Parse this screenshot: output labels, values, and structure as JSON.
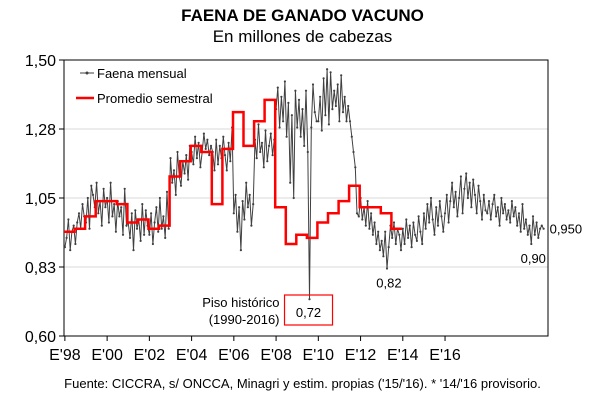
{
  "chart_data": {
    "type": "line",
    "title": "FAENA DE GANADO VACUNO",
    "subtitle": "En millones de cabezas",
    "source": "Fuente: CICCRA, s/ ONCCA, Minagri y estim. propias ('15/'16). * '14/'16 provisorio.",
    "xlabel": "",
    "ylabel": "",
    "ylim": [
      0.6,
      1.5
    ],
    "y_ticks": [
      "0,60",
      "0,83",
      "1,05",
      "1,28",
      "1,50"
    ],
    "x_ticks": [
      "E'98",
      "E'00",
      "E'02",
      "E'04",
      "E'06",
      "E'08",
      "E'10",
      "E'12",
      "E'14",
      "E'16"
    ],
    "legend": {
      "position": "top-left",
      "entries": [
        "Faena mensual",
        "Promedio semestral"
      ]
    },
    "colors": {
      "monthly": "#404040",
      "semester": "#ff0000",
      "annotation_box": "#ff0000"
    },
    "annotations": {
      "low_2008_value": "0,72",
      "low_2008_label": "Piso histórico",
      "low_2008_range": "(1990-2016)",
      "low_2011": "0,82",
      "low_2016": "0,90",
      "last_value": "0,950"
    },
    "series": [
      {
        "name": "Faena mensual",
        "values": [
          0.89,
          0.92,
          0.98,
          0.88,
          0.94,
          0.96,
          0.9,
          0.97,
          1.0,
          0.95,
          1.03,
          0.99,
          0.97,
          1.05,
          0.95,
          1.09,
          1.06,
          1.02,
          1.1,
          1.0,
          1.04,
          0.96,
          1.08,
          1.02,
          1.05,
          0.97,
          1.1,
          0.99,
          1.03,
          0.94,
          1.04,
          0.99,
          1.02,
          0.93,
          1.08,
          0.96,
          0.97,
          0.92,
          1.0,
          0.88,
          1.01,
          0.95,
          0.98,
          0.91,
          1.03,
          0.93,
          1.01,
          0.96,
          0.93,
          1.0,
          0.9,
          0.97,
          1.02,
          0.94,
          1.05,
          0.95,
          0.99,
          0.92,
          1.07,
          0.95,
          1.18,
          1.1,
          1.14,
          1.06,
          1.2,
          1.12,
          1.09,
          1.17,
          1.13,
          1.19,
          1.11,
          1.22,
          1.2,
          1.16,
          1.25,
          1.18,
          1.23,
          1.15,
          1.2,
          1.26,
          1.21,
          1.24,
          1.19,
          1.22,
          1.2,
          1.14,
          1.24,
          1.16,
          1.22,
          1.18,
          1.25,
          1.19,
          1.14,
          1.23,
          1.17,
          1.28,
          1.0,
          1.06,
          0.94,
          1.02,
          0.88,
          1.04,
          0.98,
          1.1,
          1.02,
          1.06,
          0.96,
          1.03,
          1.24,
          1.18,
          1.29,
          1.2,
          1.23,
          1.15,
          1.27,
          1.17,
          1.22,
          1.26,
          1.19,
          1.24,
          1.34,
          1.41,
          1.28,
          1.38,
          1.3,
          1.43,
          1.25,
          1.36,
          1.1,
          1.32,
          1.05,
          1.4,
          1.28,
          1.37,
          1.25,
          1.34,
          1.22,
          1.4,
          1.2,
          0.72,
          1.28,
          1.42,
          1.33,
          1.3,
          1.3,
          1.38,
          1.27,
          1.44,
          1.32,
          1.47,
          1.29,
          1.46,
          1.34,
          1.4,
          1.35,
          1.42,
          1.3,
          1.45,
          1.33,
          1.38,
          1.3,
          1.35,
          1.3,
          1.25,
          1.2,
          1.15,
          1.0,
          0.99,
          1.05,
          0.98,
          1.02,
          0.96,
          1.04,
          0.95,
          1.0,
          0.93,
          0.97,
          0.9,
          0.94,
          0.88,
          0.91,
          0.86,
          0.94,
          0.82,
          0.89,
          0.96,
          0.92,
          0.97,
          0.9,
          0.95,
          0.93,
          0.88,
          0.95,
          0.9,
          0.98,
          0.92,
          0.96,
          0.89,
          0.97,
          0.93,
          0.91,
          0.99,
          0.94,
          0.9,
          1.0,
          0.95,
          1.03,
          0.97,
          1.05,
          0.98,
          0.93,
          1.02,
          0.96,
          1.04,
          0.99,
          0.94,
          1.0,
          1.06,
          0.97,
          1.04,
          1.1,
          1.02,
          1.07,
          0.99,
          1.05,
          1.12,
          1.0,
          1.08,
          1.13,
          1.05,
          1.1,
          1.02,
          1.11,
          1.06,
          1.0,
          1.09,
          1.04,
          0.98,
          1.06,
          1.01,
          1.0,
          1.04,
          0.98,
          1.03,
          1.06,
          0.99,
          1.02,
          0.96,
          1.05,
          1.0,
          1.03,
          0.98,
          1.01,
          0.97,
          1.04,
          0.99,
          1.02,
          0.96,
          1.0,
          0.94,
          1.03,
          0.95,
          0.98,
          0.93,
          0.96,
          0.9,
          0.99,
          0.93,
          0.97,
          0.92,
          0.95,
          0.96,
          0.95
        ]
      },
      {
        "name": "Promedio semestral",
        "values": [
          0.94,
          0.95,
          0.99,
          1.04,
          1.04,
          1.03,
          0.97,
          0.98,
          0.95,
          0.96,
          1.12,
          1.17,
          1.22,
          1.2,
          1.03,
          1.21,
          1.33,
          1.22,
          1.3,
          1.37,
          1.02,
          0.9,
          0.93,
          0.92,
          0.97,
          1.0,
          1.04,
          1.09,
          1.02,
          1.02,
          1.0,
          0.95
        ]
      }
    ]
  }
}
